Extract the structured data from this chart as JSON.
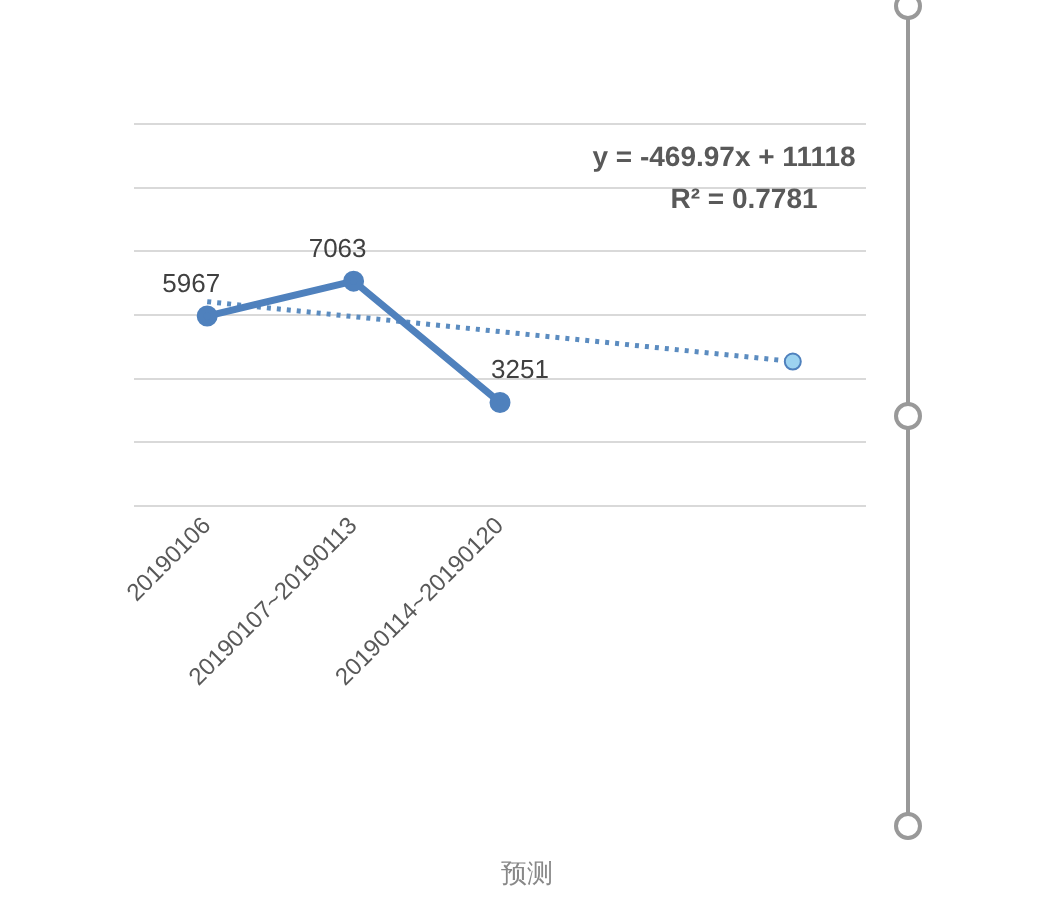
{
  "chart_data": {
    "type": "line",
    "categories": [
      "20190106",
      "20190107~20190113",
      "20190114~20190120",
      null,
      null
    ],
    "series": [
      {
        "type": "line",
        "color": "#4f81bd",
        "values": [
          5967,
          7063,
          3251,
          null,
          null
        ],
        "value_labels": [
          "5967",
          "7063",
          "3251",
          null,
          null
        ],
        "marker": "circle",
        "line_style": "solid"
      },
      {
        "type": "line",
        "color": "#5b8cc0",
        "values": [
          6418,
          5948,
          5478,
          5008,
          4538
        ],
        "marker": "none",
        "line_style": "dotted"
      },
      {
        "type": "scatter",
        "color": "#9dd3f0",
        "values": [
          null,
          null,
          null,
          null,
          4538
        ],
        "marker": "circle"
      }
    ],
    "ylim": [
      0,
      12000
    ],
    "yticks": [
      {
        "value": 0,
        "label": null
      },
      {
        "value": 2000,
        "label": null
      },
      {
        "value": 4000,
        "label": null
      },
      {
        "value": 6000,
        "label": null
      },
      {
        "value": 8000,
        "label": null
      },
      {
        "value": 10000,
        "label": null
      },
      {
        "value": 12000,
        "label": null
      }
    ],
    "tick_labels": "x",
    "grid": "y",
    "legend": false,
    "annotations": [
      "y = -469.97x + 11118",
      "R² = 0.7781",
      "预测"
    ]
  }
}
